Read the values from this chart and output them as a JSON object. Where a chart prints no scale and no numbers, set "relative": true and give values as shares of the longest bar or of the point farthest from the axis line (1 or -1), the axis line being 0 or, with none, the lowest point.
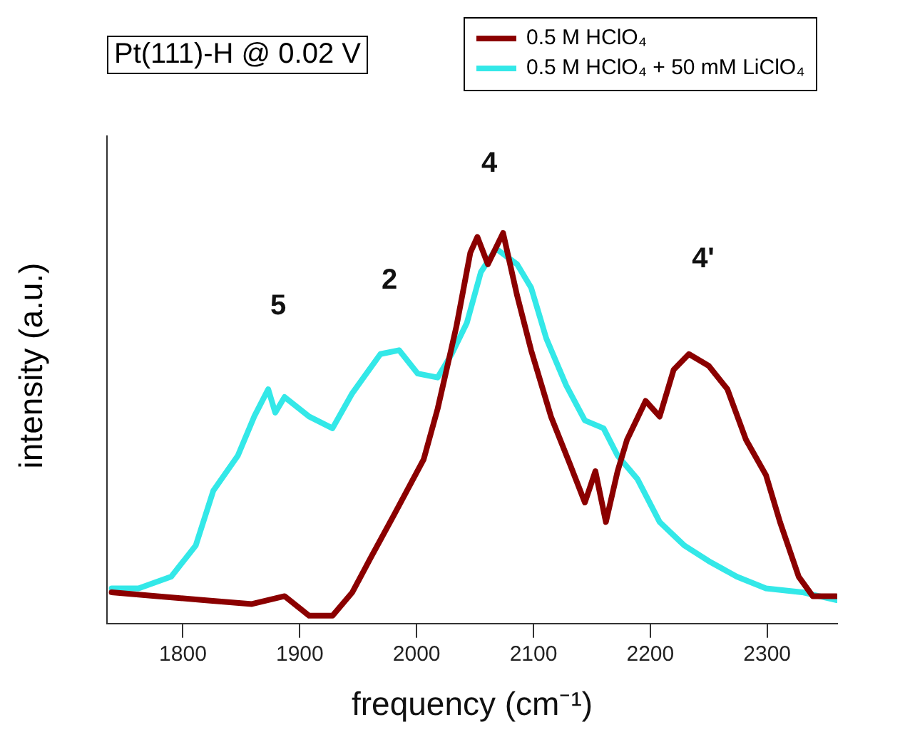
{
  "chart_data": {
    "type": "line",
    "title": "Pt(111)-H @ 0.02 V",
    "xlabel": "frequency (cm⁻¹)",
    "ylabel": "intensity (a.u.)",
    "relative": true,
    "legend": "top right",
    "xlim": [
      1735,
      2360
    ],
    "xticks": [
      1800,
      1900,
      2000,
      2100,
      2200,
      2300
    ],
    "series": [
      {
        "name": "0.5 M HClO₄",
        "color": "#8b0000",
        "x": [
          1739,
          1778,
          1818,
          1859,
          1887,
          1908,
          1928,
          1945,
          1961,
          1981,
          2006,
          2018,
          2034,
          2046,
          2052,
          2061,
          2074,
          2086,
          2098,
          2115,
          2131,
          2144,
          2153,
          2162,
          2172,
          2180,
          2196,
          2208,
          2220,
          2233,
          2250,
          2266,
          2282,
          2299,
          2311,
          2327,
          2339,
          2359
        ],
        "values": [
          0.08,
          0.07,
          0.06,
          0.05,
          0.07,
          0.02,
          0.02,
          0.08,
          0.17,
          0.28,
          0.42,
          0.55,
          0.76,
          0.95,
          0.99,
          0.92,
          1,
          0.84,
          0.7,
          0.53,
          0.41,
          0.31,
          0.39,
          0.26,
          0.39,
          0.47,
          0.57,
          0.53,
          0.65,
          0.69,
          0.66,
          0.6,
          0.47,
          0.38,
          0.26,
          0.12,
          0.07,
          0.07
        ]
      },
      {
        "name": "0.5 M HClO₄ + 50 mM LiClO₄",
        "color": "#33e8e8",
        "x": [
          1739,
          1762,
          1790,
          1811,
          1826,
          1847,
          1861,
          1873,
          1879,
          1887,
          1908,
          1928,
          1945,
          1969,
          1985,
          2001,
          2018,
          2030,
          2043,
          2055,
          2068,
          2086,
          2098,
          2111,
          2128,
          2144,
          2160,
          2172,
          2189,
          2208,
          2229,
          2250,
          2274,
          2299,
          2330,
          2359
        ],
        "values": [
          0.09,
          0.09,
          0.12,
          0.2,
          0.34,
          0.43,
          0.53,
          0.6,
          0.54,
          0.58,
          0.53,
          0.5,
          0.59,
          0.69,
          0.7,
          0.64,
          0.63,
          0.69,
          0.77,
          0.9,
          0.96,
          0.92,
          0.86,
          0.73,
          0.61,
          0.52,
          0.5,
          0.43,
          0.37,
          0.26,
          0.2,
          0.16,
          0.12,
          0.09,
          0.08,
          0.06
        ]
      }
    ],
    "annotations": [
      "5",
      "2",
      "4",
      "4'"
    ]
  }
}
